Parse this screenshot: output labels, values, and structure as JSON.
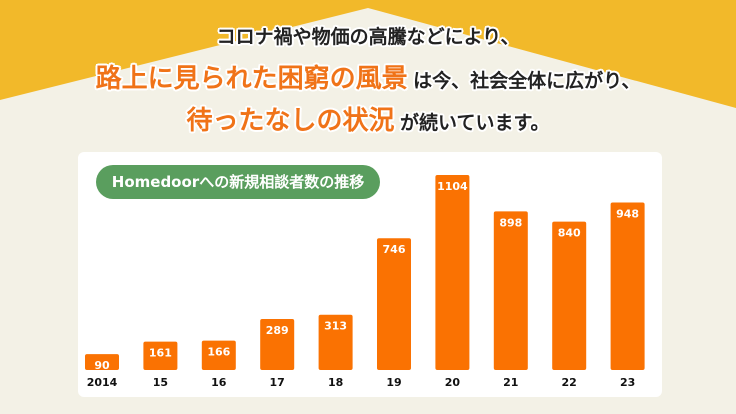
{
  "headline": {
    "line1": "コロナ禍や物価の高騰などにより、",
    "line2_emphasis": "路上に見られた困窮の風景",
    "line2_rest": "は今、社会全体に広がり、",
    "line3_emphasis": "待ったなしの状況",
    "line3_rest": "が続いています。"
  },
  "colors": {
    "background_top": "#F2B92A",
    "background": "#F3F1E6",
    "bar": "#FA7202",
    "pill": "#5A9E5E",
    "emphasis": "#F07318"
  },
  "chart_data": {
    "type": "bar",
    "title": "Homedoorへの新規相談者数の推移",
    "categories": [
      "2014",
      "15",
      "16",
      "17",
      "18",
      "19",
      "20",
      "21",
      "22",
      "23"
    ],
    "values": [
      90,
      161,
      166,
      289,
      313,
      746,
      1104,
      898,
      840,
      948
    ],
    "xlabel": "",
    "ylabel": "",
    "ylim": [
      0,
      1104
    ],
    "grid": false,
    "data_labels": true
  }
}
